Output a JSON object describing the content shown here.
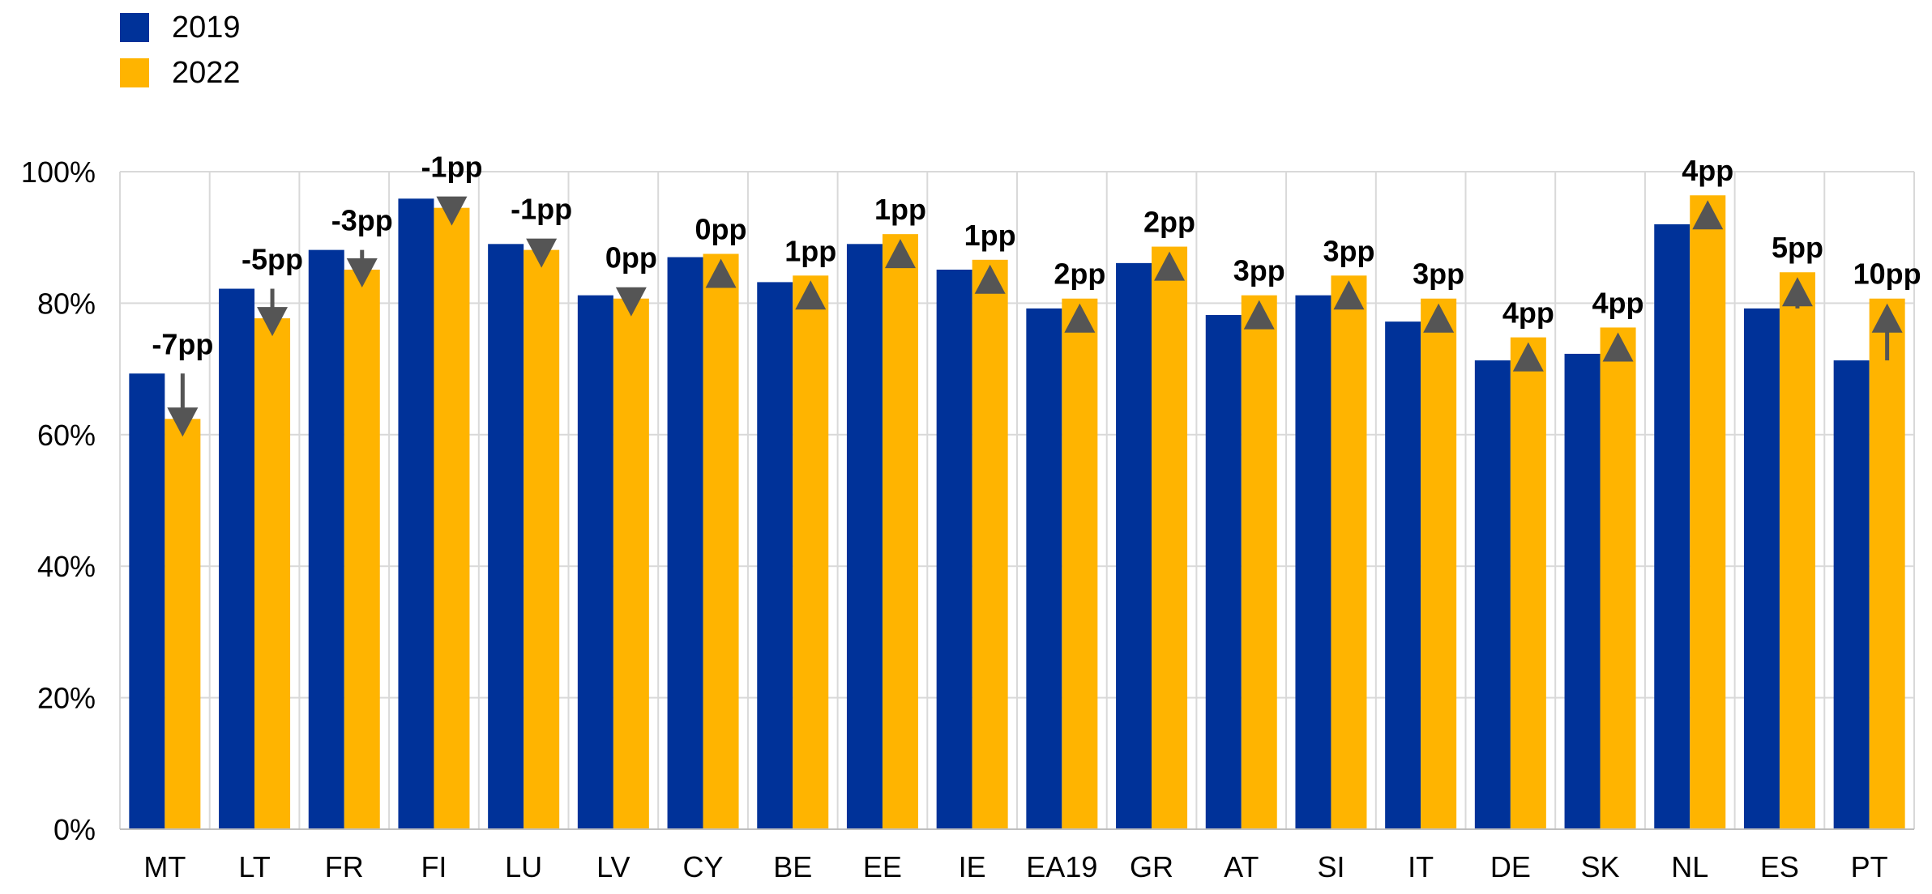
{
  "chart_data": {
    "type": "bar",
    "categories": [
      "MT",
      "LT",
      "FR",
      "FI",
      "LU",
      "LV",
      "CY",
      "BE",
      "EE",
      "IE",
      "EA19",
      "GR",
      "AT",
      "SI",
      "IT",
      "DE",
      "SK",
      "NL",
      "ES",
      "PT"
    ],
    "series": [
      {
        "name": "2019",
        "color": "#003299",
        "values": [
          69.3,
          82.2,
          88.1,
          95.9,
          89.0,
          81.2,
          87.0,
          83.2,
          89.0,
          85.1,
          79.2,
          86.1,
          78.2,
          81.2,
          77.2,
          71.3,
          72.3,
          92.0,
          79.2,
          71.3
        ]
      },
      {
        "name": "2022",
        "color": "#FFB400",
        "values": [
          62.4,
          77.7,
          85.1,
          94.5,
          88.1,
          80.7,
          87.5,
          84.2,
          90.5,
          86.6,
          80.7,
          88.6,
          81.2,
          84.2,
          80.7,
          74.8,
          76.3,
          96.4,
          84.7,
          80.7
        ]
      }
    ],
    "deltas": [
      "-7pp",
      "-5pp",
      "-3pp",
      "-1pp",
      "-1pp",
      "0pp",
      "0pp",
      "1pp",
      "1pp",
      "1pp",
      "2pp",
      "2pp",
      "3pp",
      "3pp",
      "3pp",
      "4pp",
      "4pp",
      "4pp",
      "5pp",
      "10pp"
    ],
    "directions": [
      "down",
      "down",
      "down",
      "down",
      "down",
      "down",
      "up",
      "up",
      "up",
      "up",
      "up",
      "up",
      "up",
      "up",
      "up",
      "up",
      "up",
      "up",
      "up",
      "up"
    ],
    "yticks": [
      "0%",
      "20%",
      "40%",
      "60%",
      "80%",
      "100%"
    ],
    "ylim": [
      0,
      100
    ],
    "ytick_values": [
      0,
      20,
      40,
      60,
      80,
      100
    ],
    "legend_position": "top-left",
    "marker_color": "#555555",
    "grid_color": "#d9d9d9",
    "title": "",
    "xlabel": "",
    "ylabel": ""
  }
}
